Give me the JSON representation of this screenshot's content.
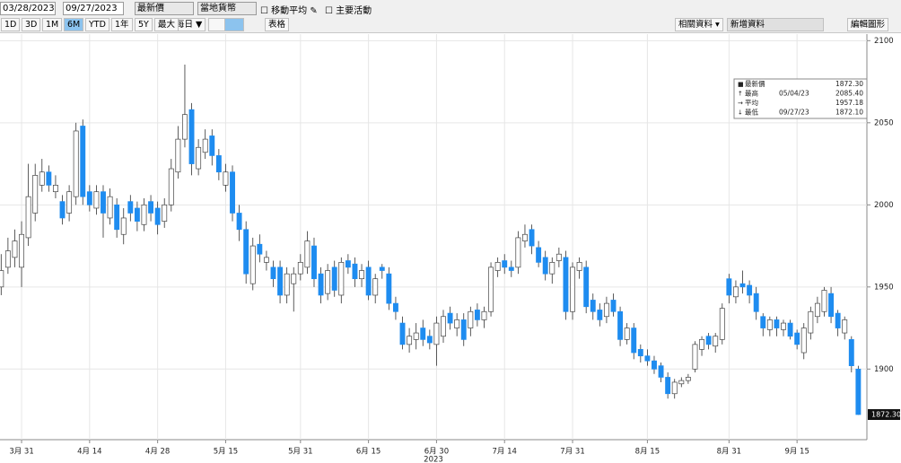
{
  "toolbar": {
    "start_date": "03/28/2023",
    "end_date": "09/27/2023",
    "field": "最新價",
    "currency": "當地貨幣",
    "moving_average": "移動平均",
    "events": "主要活動",
    "ranges": [
      "1D",
      "3D",
      "1M",
      "6M",
      "YTD",
      "1年",
      "5Y",
      "最大"
    ],
    "selected_range": "6M",
    "frequency": "每日 ▼",
    "table": "表格",
    "related": "相關資料 ▾",
    "add_data": "新增資料",
    "edit_chart": "編輯圖形"
  },
  "chart_data": {
    "type": "candlestick",
    "categories": [
      null,
      null,
      null,
      "3月 31",
      null,
      null,
      null,
      null,
      null,
      null,
      null,
      null,
      null,
      "4月 14",
      null,
      null,
      null,
      null,
      null,
      null,
      null,
      null,
      null,
      "4月 28",
      null,
      null,
      null,
      null,
      null,
      null,
      null,
      null,
      null,
      "5月 15",
      null,
      null,
      null,
      null,
      null,
      null,
      null,
      null,
      null,
      null,
      "5月 31",
      null,
      null,
      null,
      null,
      null,
      null,
      null,
      null,
      null,
      "6月 15",
      null,
      null,
      null,
      null,
      null,
      null,
      null,
      null,
      null,
      "6月 30",
      null,
      null,
      null,
      null,
      null,
      null,
      null,
      null,
      null,
      "7月 14",
      null,
      null,
      null,
      null,
      null,
      null,
      null,
      null,
      null,
      "7月 31",
      null,
      null,
      null,
      null,
      null,
      null,
      null,
      null,
      null,
      null,
      "8月 15",
      null,
      null,
      null,
      null,
      null,
      null,
      null,
      null,
      null,
      null,
      null,
      "8月 31",
      null,
      null,
      null,
      null,
      null,
      null,
      null,
      null,
      null,
      "9月 15",
      null,
      null,
      null,
      null,
      null,
      null,
      null,
      null,
      null
    ],
    "year_label": "2023",
    "open": [
      1950,
      1962,
      1968,
      1962,
      1980,
      1995,
      2012,
      2020,
      2008,
      2002,
      1995,
      2005,
      2048,
      2008,
      1998,
      2008,
      1992,
      2000,
      1982,
      2002,
      1998,
      1988,
      2002,
      1998,
      1990,
      2000,
      2020,
      2040,
      2058,
      2022,
      2032,
      2042,
      2030,
      2012,
      2020,
      1995,
      1985,
      1952,
      1976,
      1965,
      1962,
      1962,
      1945,
      1952,
      1958,
      1962,
      1975,
      1958,
      1946,
      1962,
      1945,
      1966,
      1964,
      1955,
      1962,
      1945,
      1962,
      1958,
      1940,
      1928,
      1915,
      1918,
      1925,
      1920,
      1915,
      1920,
      1934,
      1925,
      1930,
      1925,
      1936,
      1930,
      1935,
      1960,
      1966,
      1962,
      1962,
      1978,
      1985,
      1974,
      1968,
      1958,
      1966,
      1968,
      1935,
      1960,
      1962,
      1942,
      1936,
      1932,
      1942,
      1935,
      1918,
      1925,
      1912,
      1908,
      1905,
      1902,
      1895,
      1885,
      1891,
      1893,
      1900,
      1912,
      1920,
      1914,
      1918,
      1955,
      1944,
      1952,
      1951,
      1946,
      1932,
      1924,
      1930,
      1924,
      1928,
      1922,
      1910,
      1922,
      1932,
      1935,
      1946,
      1934,
      1922,
      1918,
      1900
    ],
    "high": [
      1970,
      1980,
      1985,
      1990,
      2025,
      2025,
      2028,
      2024,
      2018,
      2006,
      2012,
      2050,
      2052,
      2012,
      2012,
      2012,
      2010,
      2004,
      1998,
      2006,
      2002,
      2004,
      2006,
      2002,
      2004,
      2028,
      2048,
      2085.4,
      2062,
      2040,
      2046,
      2046,
      2034,
      2025,
      2024,
      2000,
      1990,
      1980,
      1982,
      1972,
      1966,
      1966,
      1962,
      1962,
      1970,
      1984,
      1980,
      1962,
      1964,
      1966,
      1968,
      1970,
      1968,
      1964,
      1966,
      1958,
      1964,
      1962,
      1944,
      1932,
      1925,
      1928,
      1930,
      1924,
      1932,
      1936,
      1938,
      1934,
      1934,
      1938,
      1940,
      1938,
      1965,
      1968,
      1970,
      1966,
      1984,
      1988,
      1988,
      1978,
      1972,
      1968,
      1974,
      1972,
      1965,
      1968,
      1966,
      1946,
      1940,
      1944,
      1946,
      1938,
      1928,
      1928,
      1915,
      1912,
      1908,
      1904,
      1898,
      1894,
      1895,
      1897,
      1917,
      1920,
      1922,
      1922,
      1940,
      1958,
      1954,
      1960,
      1954,
      1950,
      1934,
      1932,
      1932,
      1930,
      1930,
      1924,
      1928,
      1938,
      1944,
      1950,
      1950,
      1936,
      1932,
      1920,
      1902
    ],
    "low": [
      1945,
      1958,
      1962,
      1950,
      1975,
      1990,
      2008,
      2008,
      2004,
      1988,
      1990,
      2000,
      2000,
      1996,
      1994,
      1980,
      1988,
      1980,
      1976,
      1990,
      1984,
      1984,
      1990,
      1982,
      1986,
      1996,
      2016,
      2035,
      2018,
      2018,
      2028,
      2024,
      2015,
      2008,
      1990,
      1978,
      1952,
      1948,
      1965,
      1960,
      1950,
      1940,
      1940,
      1935,
      1954,
      1958,
      1950,
      1940,
      1942,
      1944,
      1940,
      1958,
      1950,
      1950,
      1942,
      1940,
      1955,
      1936,
      1930,
      1912,
      1910,
      1912,
      1914,
      1912,
      1902,
      1916,
      1924,
      1920,
      1914,
      1920,
      1926,
      1925,
      1932,
      1956,
      1958,
      1956,
      1958,
      1974,
      1970,
      1962,
      1954,
      1952,
      1962,
      1930,
      1930,
      1955,
      1934,
      1930,
      1926,
      1928,
      1932,
      1914,
      1915,
      1906,
      1904,
      1902,
      1897,
      1892,
      1882,
      1882,
      1889,
      1891,
      1898,
      1908,
      1912,
      1910,
      1915,
      1940,
      1940,
      1946,
      1940,
      1930,
      1920,
      1920,
      1920,
      1920,
      1918,
      1912,
      1906,
      1918,
      1928,
      1932,
      1928,
      1920,
      1918,
      1898,
      1872.1
    ],
    "close": [
      1960,
      1972,
      1978,
      1982,
      2005,
      2018,
      2020,
      2012,
      2012,
      1992,
      2008,
      2045,
      2005,
      2000,
      2008,
      1995,
      2005,
      1985,
      1992,
      1995,
      1990,
      2000,
      1995,
      1988,
      2000,
      2022,
      2040,
      2055,
      2025,
      2035,
      2040,
      2030,
      2020,
      2020,
      1995,
      1985,
      1958,
      1975,
      1970,
      1968,
      1955,
      1945,
      1958,
      1958,
      1965,
      1978,
      1955,
      1945,
      1960,
      1948,
      1965,
      1962,
      1955,
      1960,
      1945,
      1955,
      1960,
      1940,
      1935,
      1915,
      1920,
      1922,
      1918,
      1916,
      1928,
      1932,
      1928,
      1930,
      1918,
      1935,
      1930,
      1935,
      1962,
      1965,
      1962,
      1960,
      1980,
      1982,
      1975,
      1965,
      1958,
      1965,
      1970,
      1935,
      1962,
      1965,
      1938,
      1935,
      1930,
      1940,
      1935,
      1918,
      1925,
      1910,
      1908,
      1905,
      1900,
      1895,
      1885,
      1892,
      1893,
      1895,
      1915,
      1918,
      1915,
      1920,
      1937,
      1945,
      1950,
      1950,
      1945,
      1935,
      1925,
      1930,
      1925,
      1928,
      1920,
      1915,
      1925,
      1935,
      1940,
      1948,
      1932,
      1925,
      1930,
      1902,
      1872.3
    ],
    "last_label": "1872.30",
    "up_color": "#ffffff",
    "down_color": "#1e8cf0",
    "ylim": [
      1857,
      2104
    ],
    "yticks": [
      1900,
      1950,
      2000,
      2050,
      2100
    ],
    "grid": true,
    "info_box": [
      {
        "name": "最新價",
        "value": "1872.30"
      },
      {
        "name": "最高",
        "date": "05/04/23",
        "value": "2085.40"
      },
      {
        "name": "平均",
        "value": "1957.18"
      },
      {
        "name": "最低",
        "date": "09/27/23",
        "value": "1872.10"
      }
    ]
  }
}
